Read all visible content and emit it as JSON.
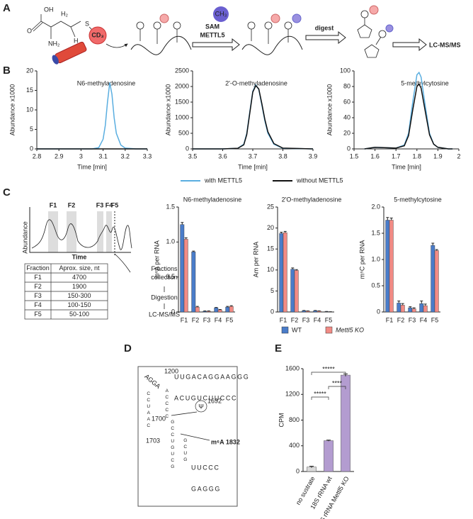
{
  "panel_labels": [
    "A",
    "B",
    "C",
    "D",
    "E"
  ],
  "schematic": {
    "molecule": [
      "OH",
      "O",
      "H₂",
      "S",
      "NH₂",
      "H"
    ],
    "label": "CD₃",
    "methyl": "CH₃",
    "cofactor": "SAM",
    "enzyme": "METTL5",
    "digest": "digest",
    "output": "LC-MS/MS"
  },
  "chart_data": [
    {
      "type": "line",
      "title": "N6-methyladenosine",
      "xlabel": "Time [min]",
      "ylabel": "Abundance x1000",
      "x": [
        2.8,
        2.9,
        3.0,
        3.05,
        3.08,
        3.1,
        3.11,
        3.12,
        3.13,
        3.14,
        3.15,
        3.16,
        3.18,
        3.2,
        3.25,
        3.3
      ],
      "series": [
        {
          "name": "with METTL5",
          "color": "#5aaee0",
          "values": [
            0,
            0,
            0,
            0,
            0.3,
            2.5,
            6,
            12,
            17,
            14,
            8,
            4,
            1,
            0.2,
            0,
            0
          ]
        },
        {
          "name": "without METTL5",
          "color": "#111111",
          "values": [
            0,
            0,
            0,
            0,
            0,
            0,
            0,
            0,
            0,
            0,
            0,
            0,
            0,
            0,
            0,
            0
          ]
        }
      ],
      "xlim": [
        2.8,
        3.3
      ],
      "xticks": [
        2.8,
        2.9,
        3,
        3.1,
        3.2,
        3.3
      ],
      "ylim": [
        0,
        20
      ],
      "yticks": [
        0,
        5,
        10,
        15,
        20
      ]
    },
    {
      "type": "line",
      "title": "2'-O-methyladenosine",
      "xlabel": "Time [min]",
      "ylabel": "Abundance x1000",
      "x": [
        3.5,
        3.6,
        3.65,
        3.67,
        3.68,
        3.69,
        3.7,
        3.71,
        3.72,
        3.73,
        3.74,
        3.75,
        3.77,
        3.8,
        3.9
      ],
      "series": [
        {
          "name": "with METTL5",
          "color": "#5aaee0",
          "values": [
            0,
            0,
            20,
            150,
            500,
            1200,
            1850,
            2050,
            1900,
            1400,
            900,
            500,
            150,
            20,
            0
          ]
        },
        {
          "name": "without METTL5",
          "color": "#111111",
          "values": [
            0,
            0,
            20,
            130,
            460,
            1150,
            1820,
            2030,
            1920,
            1450,
            950,
            550,
            170,
            25,
            0
          ]
        }
      ],
      "xlim": [
        3.5,
        3.9
      ],
      "xticks": [
        3.5,
        3.6,
        3.7,
        3.8,
        3.9
      ],
      "ylim": [
        0,
        2500
      ],
      "yticks": [
        0,
        500,
        1000,
        1500,
        2000,
        2500
      ]
    },
    {
      "type": "line",
      "title": "5-methylcytosine",
      "xlabel": "Time [min]",
      "ylabel": "Abundance x1000",
      "x": [
        1.55,
        1.6,
        1.7,
        1.74,
        1.76,
        1.78,
        1.8,
        1.81,
        1.82,
        1.84,
        1.86,
        1.88,
        1.9,
        1.95,
        1.97
      ],
      "series": [
        {
          "name": "with METTL5",
          "color": "#5aaee0",
          "values": [
            0,
            2,
            1,
            5,
            20,
            60,
            95,
            98,
            92,
            55,
            20,
            6,
            2,
            0,
            0
          ]
        },
        {
          "name": "without METTL5",
          "color": "#111111",
          "values": [
            0,
            2,
            1,
            4,
            17,
            50,
            80,
            83,
            78,
            48,
            18,
            6,
            2,
            0,
            0
          ]
        }
      ],
      "xlim": [
        1.5,
        2
      ],
      "xticks": [
        1.5,
        1.6,
        1.7,
        1.8,
        1.9,
        2
      ],
      "ylim": [
        0,
        100
      ],
      "yticks": [
        0,
        20,
        40,
        60,
        80,
        100
      ]
    },
    {
      "type": "bar",
      "title": "N6-methyladenosine",
      "ylabel": "m⁶A per RNA",
      "categories": [
        "F1",
        "F2",
        "F3",
        "F4",
        "F5"
      ],
      "series": [
        {
          "name": "WT",
          "color": "#4a7cc9",
          "values": [
            1.25,
            0.86,
            0.01,
            0.06,
            0.07
          ],
          "errors": [
            0.03,
            0.01,
            0.005,
            0.005,
            0.01
          ]
        },
        {
          "name": "Mettl5 KO",
          "color": "#f28b85",
          "values": [
            1.04,
            0.07,
            0.01,
            0.03,
            0.08
          ],
          "errors": [
            0.02,
            0.01,
            0.005,
            0.005,
            0.01
          ]
        }
      ],
      "ylim": [
        0,
        1.5
      ],
      "yticks": [
        0,
        0.5,
        {
          "value": 1,
          "label": "1.0"
        },
        1.5
      ]
    },
    {
      "type": "bar",
      "title": "2'O-methyladenosine",
      "ylabel": "Am per RNA",
      "categories": [
        "F1",
        "F2",
        "F3",
        "F4",
        "F5"
      ],
      "series": [
        {
          "name": "WT",
          "color": "#4a7cc9",
          "values": [
            18.7,
            10.2,
            0.3,
            0.3,
            0.1
          ],
          "errors": [
            0.3,
            0.3,
            0.05,
            0.05,
            0.02
          ]
        },
        {
          "name": "Mettl5 KO",
          "color": "#f28b85",
          "values": [
            18.9,
            9.9,
            0.2,
            0.2,
            0.05
          ],
          "errors": [
            0.3,
            0.2,
            0.05,
            0.05,
            0.02
          ]
        }
      ],
      "ylim": [
        0,
        25
      ],
      "yticks": [
        0,
        5,
        10,
        15,
        20,
        25
      ]
    },
    {
      "type": "bar",
      "title": "5-methylcytosine",
      "ylabel": "m⁵C per RNA",
      "categories": [
        "F1",
        "F2",
        "F3",
        "F4",
        "F5"
      ],
      "series": [
        {
          "name": "WT",
          "color": "#4a7cc9",
          "values": [
            1.75,
            0.17,
            0.08,
            0.16,
            1.27
          ],
          "errors": [
            0.05,
            0.04,
            0.02,
            0.05,
            0.04
          ]
        },
        {
          "name": "Mettl5 KO",
          "color": "#f28b85",
          "values": [
            1.75,
            0.13,
            0.06,
            0.12,
            1.17
          ],
          "errors": [
            0.04,
            0.03,
            0.02,
            0.03,
            0.02
          ]
        }
      ],
      "ylim": [
        0,
        2
      ],
      "yticks": [
        0,
        0.5,
        {
          "value": 1,
          "label": "1.0"
        },
        1.5,
        {
          "value": 2,
          "label": "2.0"
        }
      ]
    },
    {
      "type": "bar",
      "ylabel": "CPM",
      "categories": [
        "no sustrate",
        "18S rRNA wt",
        "18S rRNA Mettl5 KO"
      ],
      "values": [
        70,
        480,
        1500
      ],
      "errors": [
        12,
        8,
        18
      ],
      "colors": [
        "#d9d9d9",
        "#b39cd0",
        "#b39cd0"
      ],
      "significance": [
        "*****",
        "*****",
        "****"
      ],
      "ylim": [
        0,
        1600
      ],
      "yticks": [
        0,
        400,
        800,
        1200,
        1600
      ]
    }
  ],
  "fractionation": {
    "peaks": [
      "F1",
      "F2",
      "F3",
      "F4",
      "F5"
    ],
    "ylabel": "Abundance",
    "xlabel": "Time",
    "table": {
      "header": [
        "Fraction",
        "Aprox. size, nt"
      ],
      "rows": [
        [
          "F1",
          "4700"
        ],
        [
          "F2",
          "1900"
        ],
        [
          "F3",
          "150-300"
        ],
        [
          "F4",
          "100-150"
        ],
        [
          "F5",
          "50-100"
        ]
      ]
    },
    "steps": [
      "Fractions collection",
      "Digestion",
      "LC-MS/MS"
    ]
  },
  "structure": {
    "strands": [
      "UUGACAGGAAGGG",
      "ACUGUCUUCCC",
      "AGGA",
      "CCUAAC",
      "ACCCC",
      "GCCUGUCG",
      "UUCCC",
      "GAGGG",
      "GCUG"
    ],
    "labels": [
      "1200",
      "1692",
      "1700",
      "1703",
      "m⁶A 1832",
      "Ψ"
    ]
  }
}
